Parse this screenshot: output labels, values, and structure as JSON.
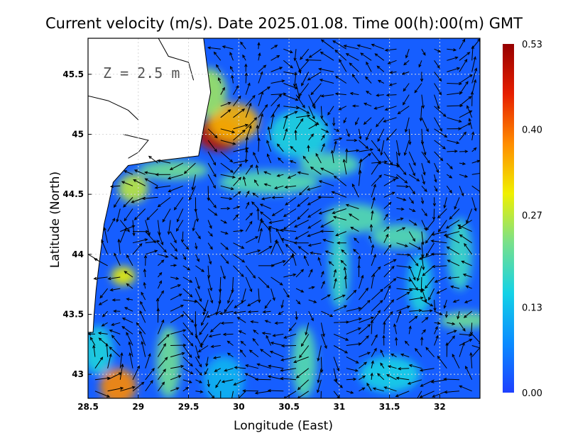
{
  "chart_data": {
    "type": "heatmap",
    "subtype": "vector-field-map",
    "title": "Current velocity (m/s). Date 2025.01.08. Time 00(h):00(m) GMT",
    "depth_label": "Z = 2.5 m",
    "xlabel": "Longitude (East)",
    "ylabel": "Latitude (North)",
    "xlim": [
      28.5,
      32.4
    ],
    "ylim": [
      42.8,
      45.8
    ],
    "x_ticks": [
      {
        "value": 28.5,
        "label": "28.5"
      },
      {
        "value": 29,
        "label": "29"
      },
      {
        "value": 29.5,
        "label": "29.5"
      },
      {
        "value": 30,
        "label": "30"
      },
      {
        "value": 30.5,
        "label": "30.5"
      },
      {
        "value": 31,
        "label": "31"
      },
      {
        "value": 31.5,
        "label": "31.5"
      },
      {
        "value": 32,
        "label": "32"
      }
    ],
    "y_ticks": [
      {
        "value": 43,
        "label": "43"
      },
      {
        "value": 43.5,
        "label": "43.5"
      },
      {
        "value": 44,
        "label": "44"
      },
      {
        "value": 44.5,
        "label": "44.5"
      },
      {
        "value": 45,
        "label": "45"
      },
      {
        "value": 45.5,
        "label": "45.5"
      }
    ],
    "grid": "dotted",
    "colorbar": {
      "position": "right",
      "min": 0.0,
      "max": 0.53,
      "tick_labels": [
        {
          "value": 0.53,
          "label": "0.53"
        },
        {
          "value": 0.4,
          "label": "0.40"
        },
        {
          "value": 0.27,
          "label": "0.27"
        },
        {
          "value": 0.13,
          "label": "0.13"
        },
        {
          "value": 0.0,
          "label": "0.00"
        }
      ],
      "colors": [
        "#1e40ff",
        "#0a8cff",
        "#14d2e6",
        "#78e08c",
        "#f0f000",
        "#ff8c00",
        "#e61e00",
        "#960000"
      ]
    },
    "land_color": "#ffffff",
    "coastline": [
      [
        29.65,
        45.8
      ],
      [
        29.68,
        45.6
      ],
      [
        29.72,
        45.35
      ],
      [
        29.66,
        45.1
      ],
      [
        29.6,
        44.82
      ],
      [
        29.2,
        44.78
      ],
      [
        28.9,
        44.74
      ],
      [
        28.75,
        44.6
      ],
      [
        28.7,
        44.4
      ],
      [
        28.66,
        44.25
      ],
      [
        28.63,
        44.05
      ],
      [
        28.6,
        43.85
      ],
      [
        28.58,
        43.7
      ],
      [
        28.56,
        43.5
      ],
      [
        28.55,
        43.35
      ]
    ],
    "land_boundary_lines": [
      [
        [
          28.5,
          45.32
        ],
        [
          28.7,
          45.28
        ],
        [
          28.9,
          45.2
        ],
        [
          29.0,
          45.12
        ]
      ],
      [
        [
          28.85,
          45.0
        ],
        [
          29.1,
          44.95
        ],
        [
          29.0,
          44.85
        ],
        [
          28.9,
          44.8
        ]
      ],
      [
        [
          29.2,
          45.8
        ],
        [
          29.3,
          45.65
        ],
        [
          29.5,
          45.6
        ],
        [
          29.55,
          45.45
        ]
      ],
      [
        [
          28.5,
          44.0
        ],
        [
          28.6,
          43.95
        ]
      ]
    ],
    "speed_blobs": [
      {
        "lon": 29.8,
        "lat": 45.0,
        "speed": 0.5,
        "rx": 0.22,
        "ry": 0.14
      },
      {
        "lon": 29.95,
        "lat": 45.1,
        "speed": 0.35,
        "rx": 0.25,
        "ry": 0.16
      },
      {
        "lon": 29.7,
        "lat": 45.35,
        "speed": 0.25,
        "rx": 0.18,
        "ry": 0.2
      },
      {
        "lon": 29.35,
        "lat": 44.7,
        "speed": 0.22,
        "rx": 0.35,
        "ry": 0.08
      },
      {
        "lon": 28.95,
        "lat": 44.55,
        "speed": 0.27,
        "rx": 0.15,
        "ry": 0.12
      },
      {
        "lon": 30.3,
        "lat": 44.6,
        "speed": 0.2,
        "rx": 0.5,
        "ry": 0.1
      },
      {
        "lon": 30.6,
        "lat": 45.0,
        "speed": 0.16,
        "rx": 0.3,
        "ry": 0.2
      },
      {
        "lon": 30.9,
        "lat": 44.75,
        "speed": 0.2,
        "rx": 0.3,
        "ry": 0.1
      },
      {
        "lon": 28.85,
        "lat": 43.82,
        "speed": 0.3,
        "rx": 0.12,
        "ry": 0.08
      },
      {
        "lon": 28.8,
        "lat": 42.9,
        "speed": 0.38,
        "rx": 0.18,
        "ry": 0.15
      },
      {
        "lon": 29.3,
        "lat": 43.1,
        "speed": 0.22,
        "rx": 0.12,
        "ry": 0.3
      },
      {
        "lon": 28.6,
        "lat": 43.2,
        "speed": 0.16,
        "rx": 0.15,
        "ry": 0.2
      },
      {
        "lon": 30.65,
        "lat": 43.1,
        "speed": 0.2,
        "rx": 0.12,
        "ry": 0.3
      },
      {
        "lon": 31.15,
        "lat": 44.3,
        "speed": 0.2,
        "rx": 0.3,
        "ry": 0.12
      },
      {
        "lon": 31.0,
        "lat": 43.9,
        "speed": 0.18,
        "rx": 0.1,
        "ry": 0.35
      },
      {
        "lon": 31.6,
        "lat": 44.15,
        "speed": 0.2,
        "rx": 0.28,
        "ry": 0.1
      },
      {
        "lon": 31.8,
        "lat": 43.75,
        "speed": 0.16,
        "rx": 0.12,
        "ry": 0.25
      },
      {
        "lon": 32.25,
        "lat": 43.45,
        "speed": 0.22,
        "rx": 0.25,
        "ry": 0.07
      },
      {
        "lon": 32.2,
        "lat": 44.0,
        "speed": 0.18,
        "rx": 0.12,
        "ry": 0.3
      },
      {
        "lon": 31.5,
        "lat": 43.0,
        "speed": 0.15,
        "rx": 0.3,
        "ry": 0.15
      },
      {
        "lon": 29.85,
        "lat": 42.95,
        "speed": 0.12,
        "rx": 0.2,
        "ry": 0.2
      }
    ]
  }
}
